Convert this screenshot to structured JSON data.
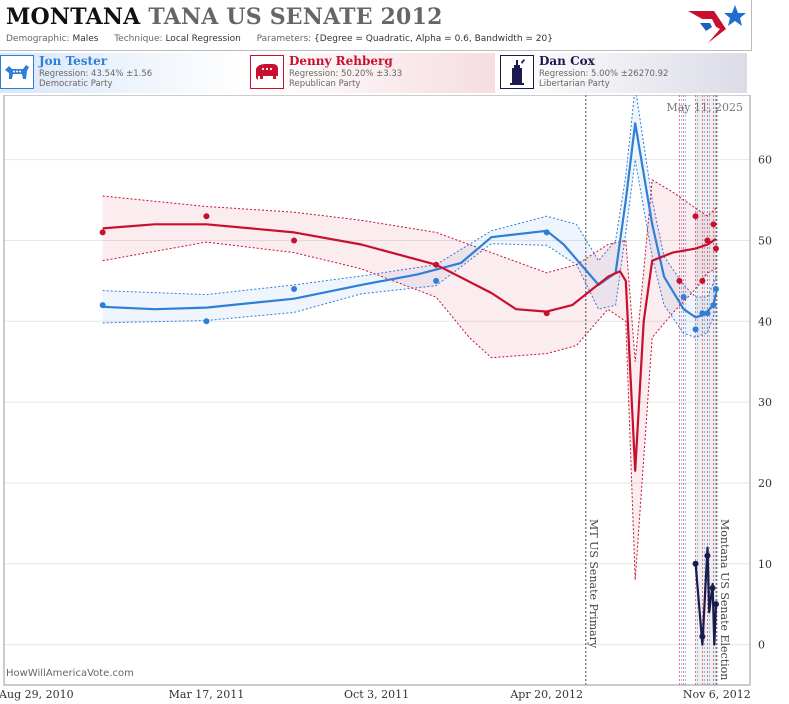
{
  "header": {
    "title_state": "MONTANA",
    "title_rest": "TANA US SENATE 2012",
    "demographic_label": "Demographic:",
    "demographic_value": "Males",
    "technique_label": "Technique:",
    "technique_value": "Local Regression",
    "parameters_label": "Parameters:",
    "parameters_value": "{Degree = Quadratic, Alpha = 0.6, Bandwidth = 20}"
  },
  "legend": [
    {
      "name": "Jon Tester",
      "regression": "Regression: 43.54% ±1.56",
      "party": "Democratic Party",
      "color": "#2f7fd8",
      "icon": "donkey-icon"
    },
    {
      "name": "Denny Rehberg",
      "regression": "Regression: 50.20% ±3.33",
      "party": "Republican Party",
      "color": "#c8102e",
      "icon": "elephant-icon"
    },
    {
      "name": "Dan Cox",
      "regression": "Regression: 5.00% ±26270.92",
      "party": "Libertarian Party",
      "color": "#1a1a4e",
      "icon": "liberty-icon"
    }
  ],
  "footer": "HowWillAmericaVote.com",
  "chart_data": {
    "type": "line",
    "date_label": "May 11, 2025",
    "x_ticks": [
      {
        "date": "2010-08-29",
        "label": "Aug 29, 2010"
      },
      {
        "date": "2011-03-17",
        "label": "Mar 17, 2011"
      },
      {
        "date": "2011-10-03",
        "label": "Oct 3, 2011"
      },
      {
        "date": "2012-04-20",
        "label": "Apr 20, 2012"
      },
      {
        "date": "2012-11-06",
        "label": "Nov 6, 2012"
      }
    ],
    "y_ticks": [
      0,
      10,
      20,
      30,
      40,
      50,
      60
    ],
    "xlim": [
      "2010-07-22",
      "2012-12-15"
    ],
    "ylim": [
      -5,
      68
    ],
    "events": [
      {
        "date": "2012-06-05",
        "label": "MT US Senate Primary"
      },
      {
        "date": "2012-11-06",
        "label": "Montana US Senate Election"
      }
    ],
    "series": [
      {
        "name": "Jon Tester",
        "color": "#2f7fd8",
        "points": [
          [
            "2010-11-15",
            42
          ],
          [
            "2011-03-17",
            40
          ],
          [
            "2011-06-28",
            44
          ],
          [
            "2011-12-12",
            45
          ],
          [
            "2012-04-20",
            51
          ],
          [
            "2012-09-28",
            43
          ],
          [
            "2012-10-12",
            39
          ],
          [
            "2012-10-20",
            41
          ],
          [
            "2012-10-26",
            41
          ],
          [
            "2012-11-02",
            42
          ],
          [
            "2012-11-05",
            44
          ]
        ],
        "curve": [
          [
            "2010-11-15",
            41.8
          ],
          [
            "2011-01-15",
            41.5
          ],
          [
            "2011-03-17",
            41.7
          ],
          [
            "2011-06-28",
            42.8
          ],
          [
            "2011-09-15",
            44.5
          ],
          [
            "2011-11-20",
            45.8
          ],
          [
            "2012-01-10",
            47.2
          ],
          [
            "2012-02-15",
            50.4
          ],
          [
            "2012-04-20",
            51.2
          ],
          [
            "2012-05-10",
            49.5
          ],
          [
            "2012-06-20",
            44.5
          ],
          [
            "2012-07-10",
            46
          ],
          [
            "2012-07-22",
            55
          ],
          [
            "2012-08-02",
            64.5
          ],
          [
            "2012-08-22",
            52
          ],
          [
            "2012-09-05",
            45.5
          ],
          [
            "2012-09-28",
            41.5
          ],
          [
            "2012-10-12",
            40.5
          ],
          [
            "2012-10-22",
            40.8
          ],
          [
            "2012-11-02",
            42
          ],
          [
            "2012-11-05",
            43.5
          ]
        ],
        "band_upper": [
          [
            "2010-11-15",
            43.8
          ],
          [
            "2011-03-17",
            43.3
          ],
          [
            "2011-06-28",
            44.5
          ],
          [
            "2011-09-15",
            45.6
          ],
          [
            "2011-12-12",
            47
          ],
          [
            "2012-02-15",
            51.2
          ],
          [
            "2012-04-20",
            53
          ],
          [
            "2012-05-25",
            52
          ],
          [
            "2012-06-20",
            47.5
          ],
          [
            "2012-07-10",
            50
          ],
          [
            "2012-07-22",
            58
          ],
          [
            "2012-08-02",
            69
          ],
          [
            "2012-08-22",
            55
          ],
          [
            "2012-09-05",
            48
          ],
          [
            "2012-09-28",
            44.5
          ],
          [
            "2012-10-12",
            43
          ],
          [
            "2012-10-26",
            43
          ],
          [
            "2012-11-05",
            45.5
          ]
        ],
        "band_lower": [
          [
            "2010-11-15",
            39.8
          ],
          [
            "2011-03-17",
            40.1
          ],
          [
            "2011-06-28",
            41.1
          ],
          [
            "2011-09-15",
            43.4
          ],
          [
            "2011-12-12",
            44.4
          ],
          [
            "2012-02-15",
            49.6
          ],
          [
            "2012-04-20",
            49.4
          ],
          [
            "2012-05-25",
            47
          ],
          [
            "2012-06-20",
            41.5
          ],
          [
            "2012-07-10",
            42
          ],
          [
            "2012-07-22",
            51
          ],
          [
            "2012-08-02",
            60
          ],
          [
            "2012-08-22",
            48
          ],
          [
            "2012-09-05",
            42
          ],
          [
            "2012-09-28",
            38.5
          ],
          [
            "2012-10-12",
            38
          ],
          [
            "2012-10-26",
            38.6
          ],
          [
            "2012-11-05",
            41.5
          ]
        ]
      },
      {
        "name": "Denny Rehberg",
        "color": "#c8102e",
        "points": [
          [
            "2010-11-15",
            51
          ],
          [
            "2011-03-17",
            53
          ],
          [
            "2011-06-28",
            50
          ],
          [
            "2011-12-12",
            47
          ],
          [
            "2012-04-20",
            41
          ],
          [
            "2012-09-23",
            45
          ],
          [
            "2012-10-12",
            53
          ],
          [
            "2012-10-20",
            45
          ],
          [
            "2012-10-26",
            50
          ],
          [
            "2012-11-02",
            52
          ],
          [
            "2012-11-05",
            49
          ]
        ],
        "curve": [
          [
            "2010-11-15",
            51.5
          ],
          [
            "2011-01-15",
            52
          ],
          [
            "2011-03-17",
            52
          ],
          [
            "2011-06-28",
            51
          ],
          [
            "2011-09-15",
            49.5
          ],
          [
            "2011-12-12",
            47
          ],
          [
            "2012-02-15",
            43.5
          ],
          [
            "2012-03-15",
            41.5
          ],
          [
            "2012-04-20",
            41.2
          ],
          [
            "2012-05-20",
            42
          ],
          [
            "2012-07-01",
            45.5
          ],
          [
            "2012-07-15",
            46.2
          ],
          [
            "2012-07-22",
            45
          ],
          [
            "2012-08-02",
            21.5
          ],
          [
            "2012-08-12",
            40
          ],
          [
            "2012-08-22",
            47.5
          ],
          [
            "2012-09-15",
            48.5
          ],
          [
            "2012-10-12",
            49
          ],
          [
            "2012-10-26",
            49.5
          ],
          [
            "2012-11-05",
            50.2
          ]
        ],
        "band_upper": [
          [
            "2010-11-15",
            55.5
          ],
          [
            "2011-03-17",
            54.2
          ],
          [
            "2011-06-28",
            53.5
          ],
          [
            "2011-09-15",
            52.5
          ],
          [
            "2011-12-12",
            51
          ],
          [
            "2012-02-15",
            48.5
          ],
          [
            "2012-04-20",
            46
          ],
          [
            "2012-05-25",
            47
          ],
          [
            "2012-07-01",
            49.5
          ],
          [
            "2012-07-22",
            50
          ],
          [
            "2012-08-02",
            35
          ],
          [
            "2012-08-22",
            57.5
          ],
          [
            "2012-09-15",
            56
          ],
          [
            "2012-10-12",
            54
          ],
          [
            "2012-10-26",
            53
          ],
          [
            "2012-11-05",
            54
          ]
        ],
        "band_lower": [
          [
            "2010-11-15",
            47.5
          ],
          [
            "2011-03-17",
            49.8
          ],
          [
            "2011-06-28",
            48.5
          ],
          [
            "2011-09-15",
            46.5
          ],
          [
            "2011-12-12",
            43
          ],
          [
            "2012-01-20",
            38
          ],
          [
            "2012-02-15",
            35.5
          ],
          [
            "2012-04-20",
            36
          ],
          [
            "2012-05-25",
            37
          ],
          [
            "2012-07-01",
            41.5
          ],
          [
            "2012-07-22",
            40
          ],
          [
            "2012-08-02",
            8
          ],
          [
            "2012-08-22",
            38
          ],
          [
            "2012-09-15",
            41
          ],
          [
            "2012-10-12",
            44
          ],
          [
            "2012-10-26",
            46
          ],
          [
            "2012-11-05",
            46.5
          ]
        ]
      },
      {
        "name": "Dan Cox",
        "color": "#1a1a4e",
        "points": [
          [
            "2012-10-12",
            10
          ],
          [
            "2012-10-20",
            1
          ],
          [
            "2012-10-26",
            11
          ],
          [
            "2012-11-01",
            7
          ],
          [
            "2012-11-05",
            5
          ]
        ],
        "curve": [
          [
            "2012-10-12",
            10
          ],
          [
            "2012-10-20",
            0
          ],
          [
            "2012-10-26",
            12
          ],
          [
            "2012-10-28",
            4
          ],
          [
            "2012-11-01",
            7.5
          ],
          [
            "2012-11-03",
            0
          ],
          [
            "2012-11-05",
            5
          ]
        ]
      }
    ],
    "grid": true
  }
}
